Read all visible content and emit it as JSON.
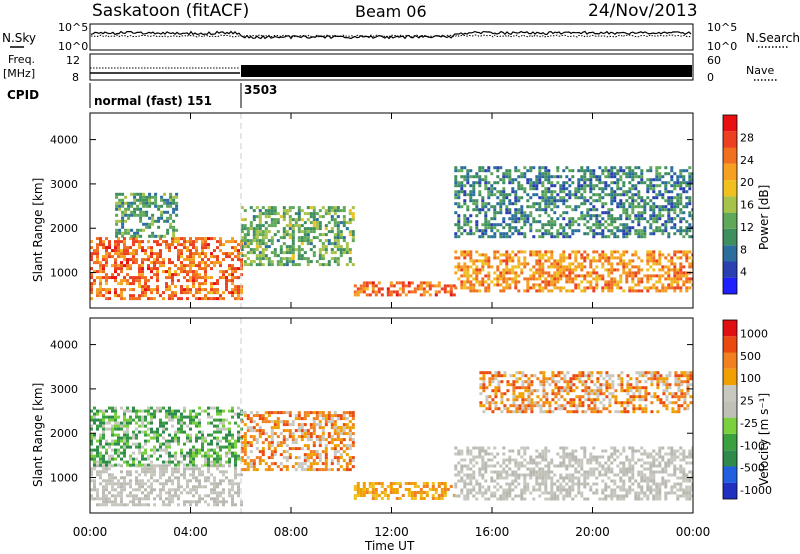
{
  "header": {
    "station": "Saskatoon (fitACF)",
    "beam": "Beam 06",
    "date": "24/Nov/2013"
  },
  "summary_panels": {
    "nsky_label": "N.Sky",
    "nsky_ticks": [
      "10^5",
      "10^0"
    ],
    "nsearch_label": "N.Search",
    "nsearch_ticks": [
      "10^5",
      "10^0"
    ],
    "freq_label_top": "Freq.",
    "freq_label_unit": "[MHz]",
    "freq_ticks": [
      "12",
      "8"
    ],
    "nave_label": "Nave",
    "nave_ticks": [
      "60",
      "0"
    ],
    "cpid_label": "CPID",
    "cpid_segments": [
      {
        "start_hour": 0,
        "end_hour": 6,
        "label": "normal (fast) 151"
      },
      {
        "start_hour": 6,
        "end_hour": 24,
        "label": "3503"
      }
    ]
  },
  "chart_data": [
    {
      "type": "heatmap",
      "name": "power",
      "ylabel": "Slant Range [km]",
      "ylim": [
        200,
        4600
      ],
      "yticks": [
        1000,
        2000,
        3000,
        4000
      ],
      "xlim": [
        0,
        24
      ],
      "colorbar": {
        "label": "Power [dB]",
        "ticks": [
          "4",
          "8",
          "12",
          "16",
          "20",
          "24",
          "28"
        ],
        "colors": [
          "#1f1fff",
          "#2a3fb0",
          "#2b6e9e",
          "#3f8f5e",
          "#5fa85a",
          "#a6c24a",
          "#f0c020",
          "#f5a020",
          "#f07020",
          "#ec4020",
          "#e81010"
        ]
      },
      "features": [
        {
          "start_hour": 0.0,
          "end_hour": 6.0,
          "range_low": 400,
          "range_high": 1800,
          "level": 24
        },
        {
          "start_hour": 1.0,
          "end_hour": 3.5,
          "range_low": 1800,
          "range_high": 2800,
          "level": 10
        },
        {
          "start_hour": 6.0,
          "end_hour": 10.5,
          "range_low": 1200,
          "range_high": 2500,
          "level": 12
        },
        {
          "start_hour": 10.5,
          "end_hour": 14.5,
          "range_low": 500,
          "range_high": 800,
          "level": 24
        },
        {
          "start_hour": 14.5,
          "end_hour": 24.0,
          "range_low": 600,
          "range_high": 1500,
          "level": 22
        },
        {
          "start_hour": 14.5,
          "end_hour": 24.0,
          "range_low": 1800,
          "range_high": 3400,
          "level": 8
        }
      ]
    },
    {
      "type": "heatmap",
      "name": "velocity",
      "ylabel": "Slant Range [km]",
      "ylim": [
        200,
        4600
      ],
      "yticks": [
        1000,
        2000,
        3000,
        4000
      ],
      "xlim": [
        0,
        24
      ],
      "xticks": [
        "00:00",
        "04:00",
        "08:00",
        "12:00",
        "16:00",
        "20:00",
        "00:00"
      ],
      "xlabel": "Time UT",
      "colorbar": {
        "label": "Velocity [m s⁻¹]",
        "ticks": [
          "1000",
          "500",
          "100",
          "25",
          "-25",
          "-100",
          "-500",
          "-1000"
        ],
        "colors": [
          "#1f2fc0",
          "#2060e0",
          "#2e8a4a",
          "#3aa040",
          "#7bd040",
          "#c0c0b8",
          "#c8c8c0",
          "#f0a000",
          "#f08020",
          "#ea4a10",
          "#e01010"
        ]
      },
      "features": [
        {
          "start_hour": 0.0,
          "end_hour": 6.0,
          "range_low": 400,
          "range_high": 1300,
          "level": "ground"
        },
        {
          "start_hour": 0.0,
          "end_hour": 6.0,
          "range_low": 1300,
          "range_high": 2600,
          "level": "green"
        },
        {
          "start_hour": 6.0,
          "end_hour": 10.5,
          "range_low": 1200,
          "range_high": 2500,
          "level": "orange"
        },
        {
          "start_hour": 10.5,
          "end_hour": 14.5,
          "range_low": 500,
          "range_high": 900,
          "level": "yellow"
        },
        {
          "start_hour": 14.5,
          "end_hour": 24.0,
          "range_low": 500,
          "range_high": 1700,
          "level": "ground"
        },
        {
          "start_hour": 15.5,
          "end_hour": 24.0,
          "range_low": 2500,
          "range_high": 3400,
          "level": "orange"
        }
      ]
    }
  ]
}
